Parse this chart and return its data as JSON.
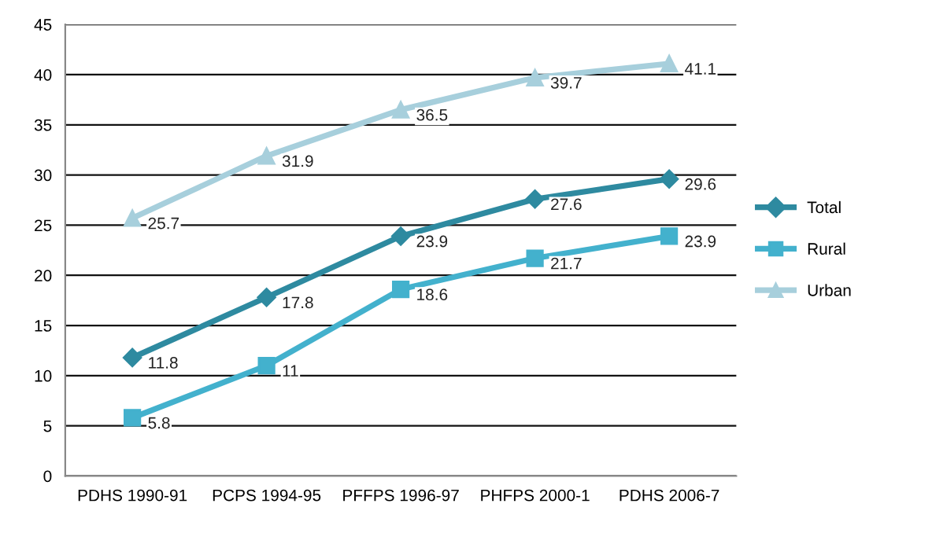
{
  "chart_data": {
    "type": "line",
    "categories": [
      "PDHS 1990-91",
      "PCPS 1994-95",
      "PFFPS 1996-97",
      "PHFPS 2000-1",
      "PDHS 2006-7"
    ],
    "series": [
      {
        "name": "Total",
        "color": "#2e8aa0",
        "marker": "diamond",
        "values": [
          11.8,
          17.8,
          23.9,
          27.6,
          29.6
        ]
      },
      {
        "name": "Rural",
        "color": "#43b1cd",
        "marker": "square",
        "values": [
          5.8,
          11,
          18.6,
          21.7,
          23.9
        ]
      },
      {
        "name": "Urban",
        "color": "#a7cfdc",
        "marker": "triangle",
        "values": [
          25.7,
          31.9,
          36.5,
          39.7,
          41.1
        ]
      }
    ],
    "ylim": [
      0,
      45
    ],
    "yticks": [
      0,
      5,
      10,
      15,
      20,
      25,
      30,
      35,
      40,
      45
    ],
    "grid": "y",
    "legend": "right",
    "data_labels": true,
    "line_style": "solid"
  }
}
